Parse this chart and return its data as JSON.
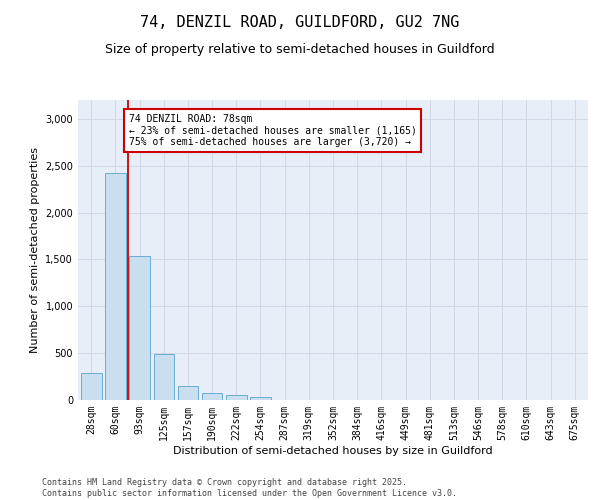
{
  "title_line1": "74, DENZIL ROAD, GUILDFORD, GU2 7NG",
  "title_line2": "Size of property relative to semi-detached houses in Guildford",
  "xlabel": "Distribution of semi-detached houses by size in Guildford",
  "ylabel": "Number of semi-detached properties",
  "categories": [
    "28sqm",
    "60sqm",
    "93sqm",
    "125sqm",
    "157sqm",
    "190sqm",
    "222sqm",
    "254sqm",
    "287sqm",
    "319sqm",
    "352sqm",
    "384sqm",
    "416sqm",
    "449sqm",
    "481sqm",
    "513sqm",
    "546sqm",
    "578sqm",
    "610sqm",
    "643sqm",
    "675sqm"
  ],
  "bar_heights": [
    290,
    2420,
    1540,
    490,
    150,
    80,
    50,
    30,
    0,
    0,
    0,
    0,
    0,
    0,
    0,
    0,
    0,
    0,
    0,
    0,
    0
  ],
  "bar_color": "#c9dff0",
  "bar_edge_color": "#6aadd5",
  "vline_color": "#cc0000",
  "annotation_text": "74 DENZIL ROAD: 78sqm\n← 23% of semi-detached houses are smaller (1,165)\n75% of semi-detached houses are larger (3,720) →",
  "annotation_box_color": "#ffffff",
  "annotation_box_edge_color": "#cc0000",
  "ylim": [
    0,
    3200
  ],
  "yticks": [
    0,
    500,
    1000,
    1500,
    2000,
    2500,
    3000
  ],
  "grid_color": "#d0d8e8",
  "bg_color": "#ffffff",
  "plot_bg_color": "#e8eef8",
  "footer_line1": "Contains HM Land Registry data © Crown copyright and database right 2025.",
  "footer_line2": "Contains public sector information licensed under the Open Government Licence v3.0.",
  "title_fontsize": 11,
  "subtitle_fontsize": 9,
  "tick_fontsize": 7,
  "label_fontsize": 8,
  "annotation_fontsize": 7,
  "footer_fontsize": 6
}
